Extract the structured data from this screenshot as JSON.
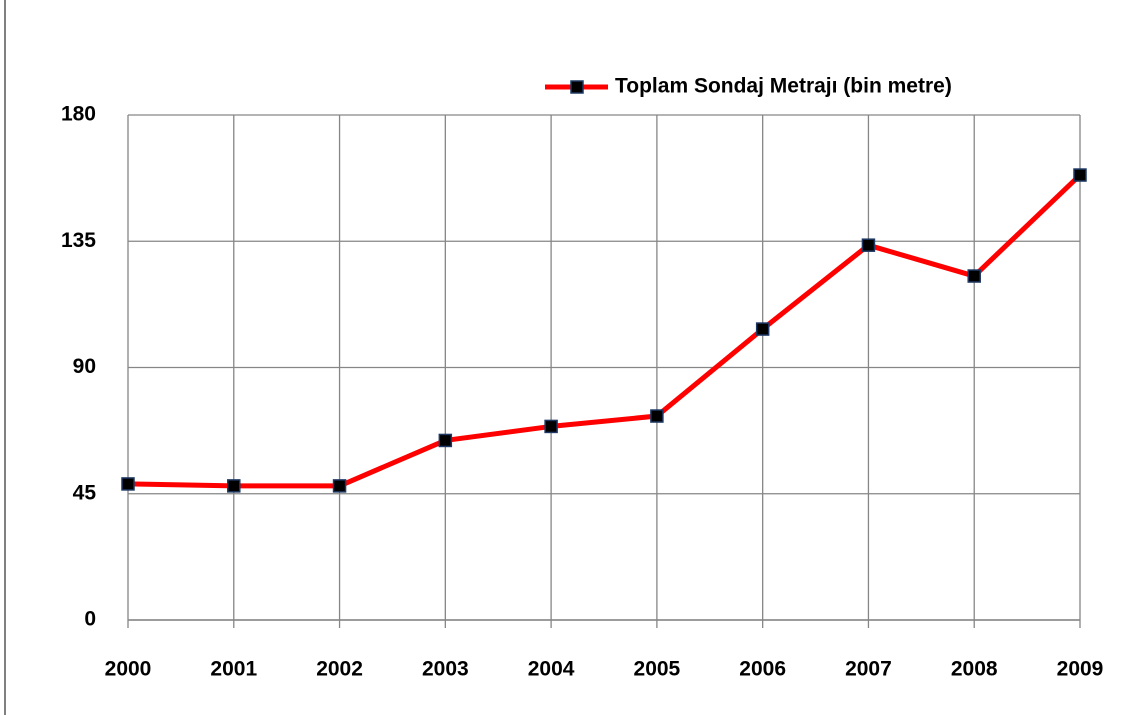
{
  "chart_data": {
    "type": "line",
    "categories": [
      "2000",
      "2001",
      "2002",
      "2003",
      "2004",
      "2005",
      "2006",
      "2007",
      "2008",
      "2009"
    ],
    "series": [
      {
        "name": "Toplam Sondaj Metrajı (bin metre)",
        "color": "#ff0000",
        "values": [
          48.5,
          47.8,
          47.8,
          64,
          69,
          72.7,
          103.7,
          133.6,
          122.6,
          158.6
        ]
      }
    ],
    "ylim": [
      0,
      180
    ],
    "yticks": [
      0,
      45,
      90,
      135,
      180
    ],
    "grid": true,
    "legend": "top-right"
  }
}
